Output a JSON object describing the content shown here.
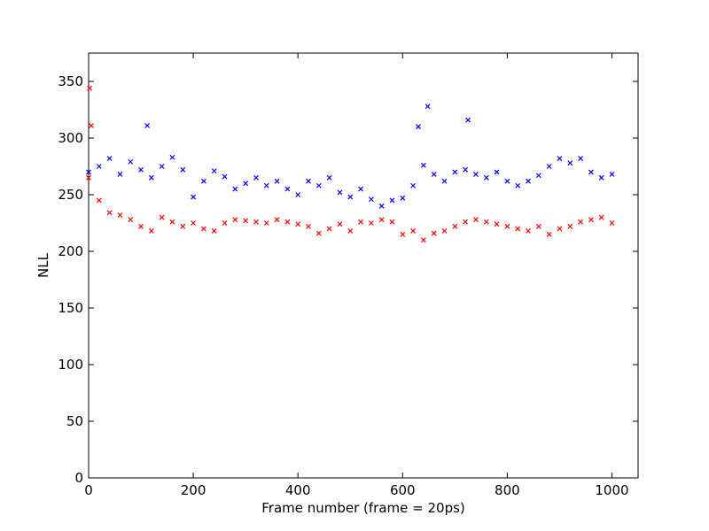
{
  "chart_data": {
    "type": "scatter",
    "xlabel": "Frame number (frame = 20ps)",
    "ylabel": "NLL",
    "xlim": [
      0,
      1050
    ],
    "ylim": [
      0,
      375
    ],
    "xticks": [
      0,
      200,
      400,
      600,
      800,
      1000
    ],
    "yticks": [
      0,
      50,
      100,
      150,
      200,
      250,
      300,
      350
    ],
    "grid": false,
    "legend": "none",
    "marker": "x",
    "series": [
      {
        "color": "#0000ff",
        "x": [
          0,
          20,
          40,
          60,
          80,
          100,
          120,
          140,
          160,
          180,
          200,
          220,
          240,
          260,
          280,
          300,
          320,
          340,
          360,
          380,
          400,
          420,
          440,
          460,
          480,
          500,
          520,
          540,
          560,
          580,
          600,
          620,
          640,
          660,
          680,
          700,
          720,
          740,
          760,
          780,
          800,
          820,
          840,
          860,
          880,
          900,
          920,
          940,
          960,
          980,
          1000
        ],
        "y": [
          270,
          275,
          282,
          268,
          279,
          272,
          265,
          275,
          283,
          272,
          248,
          262,
          271,
          266,
          255,
          260,
          265,
          258,
          262,
          255,
          250,
          262,
          258,
          265,
          252,
          248,
          255,
          246,
          240,
          245,
          247,
          258,
          276,
          268,
          262,
          270,
          272,
          268,
          265,
          270,
          262,
          258,
          262,
          267,
          275,
          282,
          278,
          282,
          270,
          265,
          268
        ]
      },
      {
        "color": "#ff0000",
        "x": [
          0,
          20,
          40,
          60,
          80,
          100,
          120,
          140,
          160,
          180,
          200,
          220,
          240,
          260,
          280,
          300,
          320,
          340,
          360,
          380,
          400,
          420,
          440,
          460,
          480,
          500,
          520,
          540,
          560,
          580,
          600,
          620,
          640,
          660,
          680,
          700,
          720,
          740,
          760,
          780,
          800,
          820,
          840,
          860,
          880,
          900,
          920,
          940,
          960,
          980,
          1000
        ],
        "y": [
          265,
          245,
          234,
          232,
          228,
          222,
          218,
          230,
          226,
          222,
          225,
          220,
          218,
          225,
          228,
          227,
          226,
          225,
          228,
          226,
          224,
          222,
          216,
          220,
          224,
          218,
          226,
          225,
          228,
          226,
          215,
          218,
          210,
          216,
          218,
          222,
          226,
          228,
          226,
          224,
          222,
          220,
          218,
          222,
          215,
          220,
          222,
          226,
          228,
          230,
          225
        ]
      }
    ],
    "outliers": [
      {
        "series": 1,
        "x": 2,
        "y": 344
      },
      {
        "series": 1,
        "x": 5,
        "y": 311
      },
      {
        "series": 0,
        "x": 648,
        "y": 328
      },
      {
        "series": 0,
        "x": 725,
        "y": 316
      },
      {
        "series": 0,
        "x": 112,
        "y": 311
      },
      {
        "series": 0,
        "x": 630,
        "y": 310
      }
    ]
  }
}
